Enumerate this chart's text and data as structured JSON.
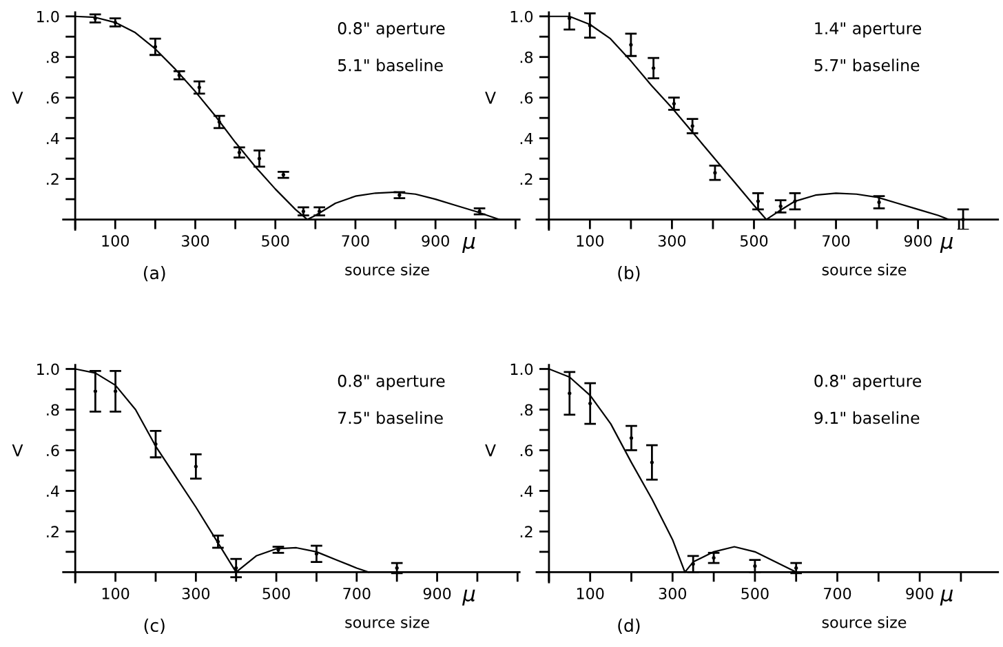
{
  "chart_data": [
    {
      "type": "line",
      "title": "(a)",
      "xlabel": "source size",
      "ylabel": "V",
      "annotations": [
        "0.8\" aperture",
        "5.1\" baseline",
        "μ"
      ],
      "xlim": [
        -30,
        1110
      ],
      "ylim": [
        -0.05,
        1.02
      ],
      "xticks": [
        {
          "value": 0,
          "label": null
        },
        100,
        {
          "value": 200,
          "label": null
        },
        300,
        {
          "value": 400,
          "label": null
        },
        500,
        {
          "value": 600,
          "label": null
        },
        700,
        {
          "value": 800,
          "label": null
        },
        900,
        {
          "value": 1000,
          "label": null
        },
        {
          "value": 1100,
          "label": null
        }
      ],
      "yticks": [
        {
          "value": 0.1,
          "label": null
        },
        {
          "value": 0.2,
          "label": ".2"
        },
        {
          "value": 0.3,
          "label": null
        },
        {
          "value": 0.4,
          "label": ".4"
        },
        {
          "value": 0.5,
          "label": null
        },
        {
          "value": 0.6,
          "label": ".6"
        },
        {
          "value": 0.7,
          "label": null
        },
        {
          "value": 0.8,
          "label": ".8"
        },
        {
          "value": 0.9,
          "label": null
        },
        {
          "value": 1.0,
          "label": "1.0"
        }
      ],
      "grid": false,
      "series": [
        {
          "color": "#000000",
          "x": [
            0,
            50,
            100,
            150,
            200,
            250,
            300,
            350,
            400,
            450,
            500,
            550,
            580,
            600,
            650,
            700,
            750,
            800,
            850,
            900,
            950,
            1000,
            1060
          ],
          "values": [
            1.0,
            0.995,
            0.97,
            0.92,
            0.84,
            0.74,
            0.63,
            0.51,
            0.38,
            0.26,
            0.15,
            0.05,
            0.0,
            0.02,
            0.08,
            0.115,
            0.13,
            0.135,
            0.125,
            0.1,
            0.07,
            0.04,
            0.0
          ]
        },
        {
          "type": "scatter",
          "marker": "circle",
          "color": "#000000",
          "x": [
            50,
            100,
            200,
            260,
            310,
            360,
            410,
            460,
            520,
            570,
            610,
            810,
            1010
          ],
          "values": [
            0.99,
            0.97,
            0.85,
            0.71,
            0.65,
            0.48,
            0.33,
            0.3,
            0.22,
            0.04,
            0.04,
            0.12,
            0.04
          ],
          "errors": [
            0.02,
            0.02,
            0.04,
            0.02,
            0.03,
            0.03,
            0.025,
            0.04,
            0.015,
            0.02,
            0.02,
            0.015,
            0.015
          ]
        }
      ]
    },
    {
      "type": "line",
      "title": "(b)",
      "xlabel": "source size",
      "ylabel": "V",
      "annotations": [
        "1.4\" aperture",
        "5.7\" baseline",
        "μ"
      ],
      "xlim": [
        -30,
        1095
      ],
      "ylim": [
        -0.05,
        1.02
      ],
      "xticks": [
        {
          "value": 0,
          "label": null
        },
        100,
        {
          "value": 200,
          "label": null
        },
        300,
        {
          "value": 400,
          "label": null
        },
        500,
        {
          "value": 600,
          "label": null
        },
        700,
        {
          "value": 800,
          "label": null
        },
        900,
        {
          "value": 1000,
          "label": null
        }
      ],
      "yticks": [
        {
          "value": 0.1,
          "label": null
        },
        {
          "value": 0.2,
          "label": ".2"
        },
        {
          "value": 0.3,
          "label": null
        },
        {
          "value": 0.4,
          "label": ".4"
        },
        {
          "value": 0.5,
          "label": null
        },
        {
          "value": 0.6,
          "label": ".6"
        },
        {
          "value": 0.7,
          "label": null
        },
        {
          "value": 0.8,
          "label": ".8"
        },
        {
          "value": 0.9,
          "label": null
        },
        {
          "value": 1.0,
          "label": "1.0"
        }
      ],
      "grid": false,
      "series": [
        {
          "color": "#000000",
          "x": [
            0,
            50,
            100,
            150,
            200,
            250,
            300,
            350,
            400,
            450,
            500,
            530,
            560,
            600,
            650,
            700,
            750,
            800,
            850,
            900,
            950,
            975
          ],
          "values": [
            1.0,
            1.0,
            0.96,
            0.89,
            0.78,
            0.66,
            0.55,
            0.43,
            0.31,
            0.19,
            0.07,
            0.0,
            0.04,
            0.09,
            0.12,
            0.13,
            0.125,
            0.11,
            0.08,
            0.05,
            0.02,
            0.0
          ]
        },
        {
          "type": "scatter",
          "marker": "circle",
          "color": "#000000",
          "x": [
            50,
            100,
            200,
            255,
            305,
            350,
            405,
            510,
            565,
            600,
            805,
            1010
          ],
          "values": [
            0.99,
            0.955,
            0.86,
            0.745,
            0.57,
            0.46,
            0.23,
            0.09,
            0.065,
            0.09,
            0.085,
            0.0
          ],
          "errors": [
            0.055,
            0.06,
            0.055,
            0.05,
            0.03,
            0.035,
            0.035,
            0.04,
            0.03,
            0.04,
            0.03,
            0.05
          ]
        }
      ]
    },
    {
      "type": "line",
      "title": "(c)",
      "xlabel": "source size",
      "ylabel": "V",
      "annotations": [
        "0.8\" aperture",
        "7.5\" baseline",
        "μ"
      ],
      "xlim": [
        -30,
        1105
      ],
      "ylim": [
        -0.05,
        1.02
      ],
      "xticks": [
        {
          "value": 0,
          "label": null
        },
        100,
        {
          "value": 200,
          "label": null
        },
        300,
        {
          "value": 400,
          "label": null
        },
        500,
        {
          "value": 600,
          "label": null
        },
        700,
        {
          "value": 800,
          "label": null
        },
        900,
        {
          "value": 1000,
          "label": null
        },
        {
          "value": 1100,
          "label": null
        }
      ],
      "yticks": [
        {
          "value": 0.1,
          "label": null
        },
        {
          "value": 0.2,
          "label": ".2"
        },
        {
          "value": 0.3,
          "label": null
        },
        {
          "value": 0.4,
          "label": ".4"
        },
        {
          "value": 0.5,
          "label": null
        },
        {
          "value": 0.6,
          "label": ".6"
        },
        {
          "value": 0.7,
          "label": null
        },
        {
          "value": 0.8,
          "label": ".8"
        },
        {
          "value": 0.9,
          "label": null
        },
        {
          "value": 1.0,
          "label": "1.0"
        }
      ],
      "grid": false,
      "series": [
        {
          "color": "#000000",
          "x": [
            0,
            50,
            100,
            150,
            200,
            250,
            300,
            350,
            400,
            450,
            500,
            550,
            600,
            650,
            700,
            730
          ],
          "values": [
            1.0,
            0.98,
            0.92,
            0.8,
            0.62,
            0.47,
            0.32,
            0.16,
            0.0,
            0.08,
            0.115,
            0.12,
            0.1,
            0.06,
            0.02,
            0.0
          ]
        },
        {
          "type": "scatter",
          "marker": "circle",
          "color": "#000000",
          "x": [
            50,
            100,
            200,
            300,
            355,
            400,
            505,
            600,
            800
          ],
          "values": [
            0.89,
            0.89,
            0.63,
            0.52,
            0.15,
            0.02,
            0.11,
            0.09,
            0.02
          ],
          "errors": [
            0.1,
            0.1,
            0.065,
            0.06,
            0.03,
            0.045,
            0.015,
            0.04,
            0.025
          ]
        }
      ]
    },
    {
      "type": "line",
      "title": "(d)",
      "xlabel": "source size",
      "ylabel": "V",
      "annotations": [
        "0.8\" aperture",
        "9.1\" baseline",
        "μ"
      ],
      "xlim": [
        -30,
        1090
      ],
      "ylim": [
        -0.05,
        1.02
      ],
      "xticks": [
        {
          "value": 0,
          "label": null
        },
        100,
        {
          "value": 200,
          "label": null
        },
        300,
        {
          "value": 400,
          "label": null
        },
        500,
        {
          "value": 600,
          "label": null
        },
        700,
        {
          "value": 800,
          "label": null
        },
        900,
        {
          "value": 1000,
          "label": null
        }
      ],
      "yticks": [
        {
          "value": 0.1,
          "label": null
        },
        {
          "value": 0.2,
          "label": ".2"
        },
        {
          "value": 0.3,
          "label": null
        },
        {
          "value": 0.4,
          "label": ".4"
        },
        {
          "value": 0.5,
          "label": null
        },
        {
          "value": 0.6,
          "label": ".6"
        },
        {
          "value": 0.7,
          "label": null
        },
        {
          "value": 0.8,
          "label": ".8"
        },
        {
          "value": 0.9,
          "label": null
        },
        {
          "value": 1.0,
          "label": "1.0"
        }
      ],
      "grid": false,
      "series": [
        {
          "color": "#000000",
          "x": [
            0,
            50,
            100,
            150,
            200,
            250,
            300,
            330,
            350,
            400,
            450,
            500,
            550,
            600
          ],
          "values": [
            1.0,
            0.96,
            0.87,
            0.73,
            0.54,
            0.36,
            0.16,
            0.0,
            0.05,
            0.1,
            0.125,
            0.1,
            0.05,
            0.0
          ]
        },
        {
          "type": "scatter",
          "marker": "circle",
          "color": "#000000",
          "x": [
            50,
            100,
            200,
            250,
            350,
            400,
            500,
            600
          ],
          "values": [
            0.88,
            0.83,
            0.66,
            0.54,
            0.04,
            0.07,
            0.03,
            0.02
          ],
          "errors": [
            0.105,
            0.1,
            0.06,
            0.085,
            0.04,
            0.025,
            0.03,
            0.025
          ]
        }
      ]
    }
  ]
}
